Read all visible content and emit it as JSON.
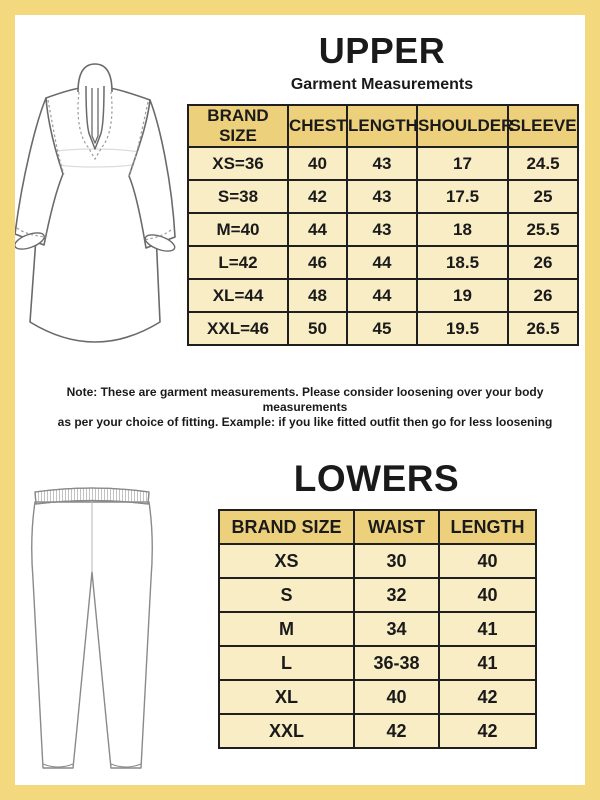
{
  "colors": {
    "frame_yellow": "#f4d87e",
    "header_cell_bg": "#edd07c",
    "data_cell_bg": "#f9edc5",
    "table_border": "#1f1f1f",
    "text": "#1a1a1a"
  },
  "upper_section": {
    "title": "UPPER",
    "subtitle": "Garment Measurements",
    "table": {
      "headers": [
        "BRAND SIZE",
        "CHEST",
        "LENGTH",
        "SHOULDER",
        "SLEEVE"
      ],
      "rows": [
        [
          "XS=36",
          "40",
          "43",
          "17",
          "24.5"
        ],
        [
          "S=38",
          "42",
          "43",
          "17.5",
          "25"
        ],
        [
          "M=40",
          "44",
          "43",
          "18",
          "25.5"
        ],
        [
          "L=42",
          "46",
          "44",
          "18.5",
          "26"
        ],
        [
          "XL=44",
          "48",
          "44",
          "19",
          "26"
        ],
        [
          "XXL=46",
          "50",
          "45",
          "19.5",
          "26.5"
        ]
      ]
    },
    "note": {
      "line1": "Note: These are garment measurements. Please consider loosening over your body measurements",
      "line2": "as per your choice of fitting. Example: if you like fitted outfit then go for less loosening"
    }
  },
  "lowers_section": {
    "title": "LOWERS",
    "table": {
      "headers": [
        "BRAND SIZE",
        "WAIST",
        "LENGTH"
      ],
      "rows": [
        [
          "XS",
          "30",
          "40"
        ],
        [
          "S",
          "32",
          "40"
        ],
        [
          "M",
          "34",
          "41"
        ],
        [
          "L",
          "36-38",
          "41"
        ],
        [
          "XL",
          "40",
          "42"
        ],
        [
          "XXL",
          "42",
          "42"
        ]
      ]
    }
  }
}
